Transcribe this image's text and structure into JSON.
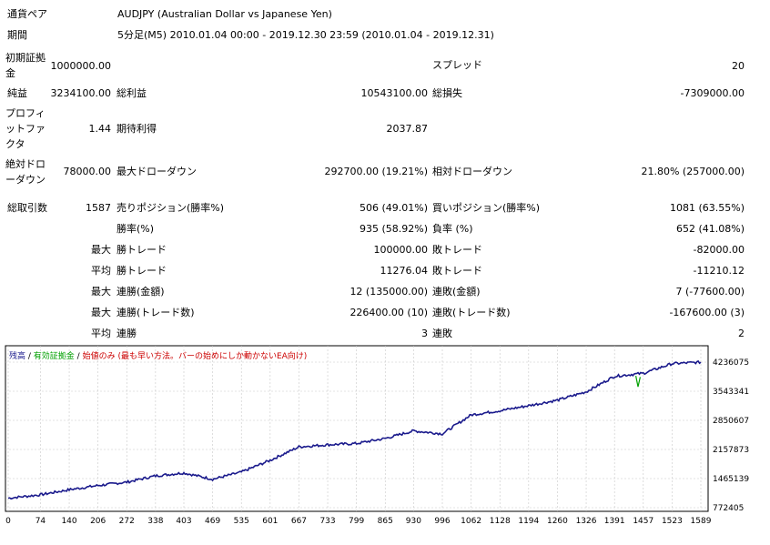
{
  "report": {
    "currency_pair_label": "通貨ペア",
    "currency_pair": "AUDJPY (Australian Dollar vs Japanese Yen)",
    "period_label": "期間",
    "period": "5分足(M5) 2010.01.04 00:00 - 2019.12.30 23:59 (2010.01.04 - 2019.12.31)",
    "initial_deposit_label": "初期証拠金",
    "initial_deposit": "1000000.00",
    "spread_label": "スプレッド",
    "spread": "20",
    "net_profit_label": "純益",
    "net_profit": "3234100.00",
    "gross_profit_label": "総利益",
    "gross_profit": "10543100.00",
    "gross_loss_label": "総損失",
    "gross_loss": "-7309000.00",
    "profit_factor_label": "プロフィットファクタ",
    "profit_factor": "1.44",
    "expected_payoff_label": "期待利得",
    "expected_payoff": "2037.87",
    "abs_drawdown_label": "絶対ドローダウン",
    "abs_drawdown": "78000.00",
    "max_drawdown_label": "最大ドローダウン",
    "max_drawdown": "292700.00 (19.21%)",
    "rel_drawdown_label": "相対ドローダウン",
    "rel_drawdown": "21.80% (257000.00)",
    "total_trades_label": "総取引数",
    "total_trades": "1587",
    "short_positions_label": "売りポジション(勝率%)",
    "short_positions": "506 (49.01%)",
    "long_positions_label": "買いポジション(勝率%)",
    "long_positions": "1081 (63.55%)",
    "win_rate_label": "勝率(%)",
    "win_rate": "935 (58.92%)",
    "loss_rate_label": "負率 (%)",
    "loss_rate": "652 (41.08%)",
    "max_label": "最大",
    "avg_label": "平均",
    "largest_win_label": "勝トレード",
    "largest_win": "100000.00",
    "largest_loss_label": "敗トレード",
    "largest_loss": "-82000.00",
    "avg_win_label": "勝トレード",
    "avg_win": "11276.04",
    "avg_loss_label": "敗トレード",
    "avg_loss": "-11210.12",
    "max_consec_wins_amt_label": "連勝(金額)",
    "max_consec_wins_amt": "12 (135000.00)",
    "max_consec_losses_amt_label": "連敗(金額)",
    "max_consec_losses_amt": "7 (-77600.00)",
    "max_consec_profit_label": "連勝(トレード数)",
    "max_consec_profit": "226400.00 (10)",
    "max_consec_loss_label": "連敗(トレード数)",
    "max_consec_loss": "-167600.00 (3)",
    "avg_consec_wins_label": "連勝",
    "avg_consec_wins": "3",
    "avg_consec_losses_label": "連敗",
    "avg_consec_losses": "2"
  },
  "chart_legend": {
    "balance": "残高",
    "sep1": " / ",
    "equity": "有効証拠金",
    "sep2": " / ",
    "lot": "始値のみ",
    "note": " (最も早い方法。バーの始めにしか動かないEA向け)"
  },
  "colors": {
    "balance": "#1a1a8c",
    "equity": "#00a000",
    "lot_text": "#cc0000",
    "grid": "#c8c8c8"
  },
  "chart_data": {
    "type": "line",
    "title": "",
    "x_ticks": [
      "0",
      "74",
      "140",
      "206",
      "272",
      "338",
      "403",
      "469",
      "535",
      "601",
      "667",
      "733",
      "799",
      "865",
      "930",
      "996",
      "1062",
      "1128",
      "1194",
      "1260",
      "1326",
      "1391",
      "1457",
      "1523",
      "1589"
    ],
    "y_ticks": [
      "4236075",
      "3543341",
      "2850607",
      "2157873",
      "1465139",
      "772405"
    ],
    "ylim": [
      772405,
      4236075
    ],
    "xlim": [
      0,
      1589
    ],
    "series": [
      {
        "name": "残高",
        "x": [
          0,
          74,
          140,
          206,
          272,
          338,
          403,
          469,
          535,
          601,
          667,
          733,
          799,
          865,
          930,
          996,
          1062,
          1128,
          1194,
          1260,
          1326,
          1391,
          1457,
          1523,
          1589
        ],
        "values": [
          1000000,
          1080000,
          1200000,
          1300000,
          1380000,
          1530000,
          1600000,
          1450000,
          1620000,
          1900000,
          2220000,
          2270000,
          2300000,
          2420000,
          2600000,
          2530000,
          2980000,
          3080000,
          3200000,
          3330000,
          3530000,
          3900000,
          3970000,
          4200000,
          4234100
        ]
      },
      {
        "name": "有効証拠金",
        "x": [
          1440,
          1445,
          1450
        ],
        "values": [
          3910000,
          3650000,
          3880000
        ]
      }
    ]
  }
}
